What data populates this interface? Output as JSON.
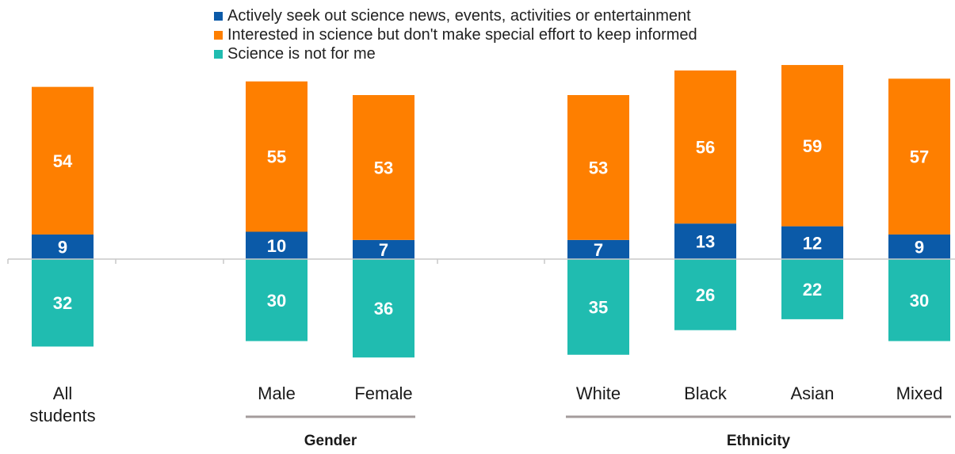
{
  "legend": [
    {
      "label": "Actively seek out science news, events, activities or entertainment",
      "color": "#0b5aa8"
    },
    {
      "label": "Interested in science but don't make special effort to keep informed",
      "color": "#fe7f00"
    },
    {
      "label": "Science is not for me",
      "color": "#20bcb0"
    }
  ],
  "chart_data": {
    "type": "bar",
    "stacked": true,
    "diverging": true,
    "categories": [
      [
        "All",
        "students"
      ],
      [
        "Male"
      ],
      [
        "Female"
      ],
      [
        "White"
      ],
      [
        "Black"
      ],
      [
        "Asian"
      ],
      [
        "Mixed"
      ]
    ],
    "groups": [
      {
        "label": "Gender",
        "categories": [
          "Male",
          "Female"
        ]
      },
      {
        "label": "Ethnicity",
        "categories": [
          "White",
          "Black",
          "Asian",
          "Mixed"
        ]
      }
    ],
    "series": [
      {
        "name": "Actively seek out science news, events, activities or entertainment",
        "color": "#0b5aa8",
        "direction": "up",
        "values": [
          9,
          10,
          7,
          7,
          13,
          12,
          9
        ]
      },
      {
        "name": "Interested in science but don't make special effort to keep informed",
        "color": "#fe7f00",
        "direction": "up",
        "values": [
          54,
          55,
          53,
          53,
          56,
          59,
          57
        ]
      },
      {
        "name": "Science is not for me",
        "color": "#20bcb0",
        "direction": "down",
        "values": [
          32,
          30,
          36,
          35,
          26,
          22,
          30
        ]
      }
    ],
    "grid": false,
    "legend_position": "top"
  }
}
